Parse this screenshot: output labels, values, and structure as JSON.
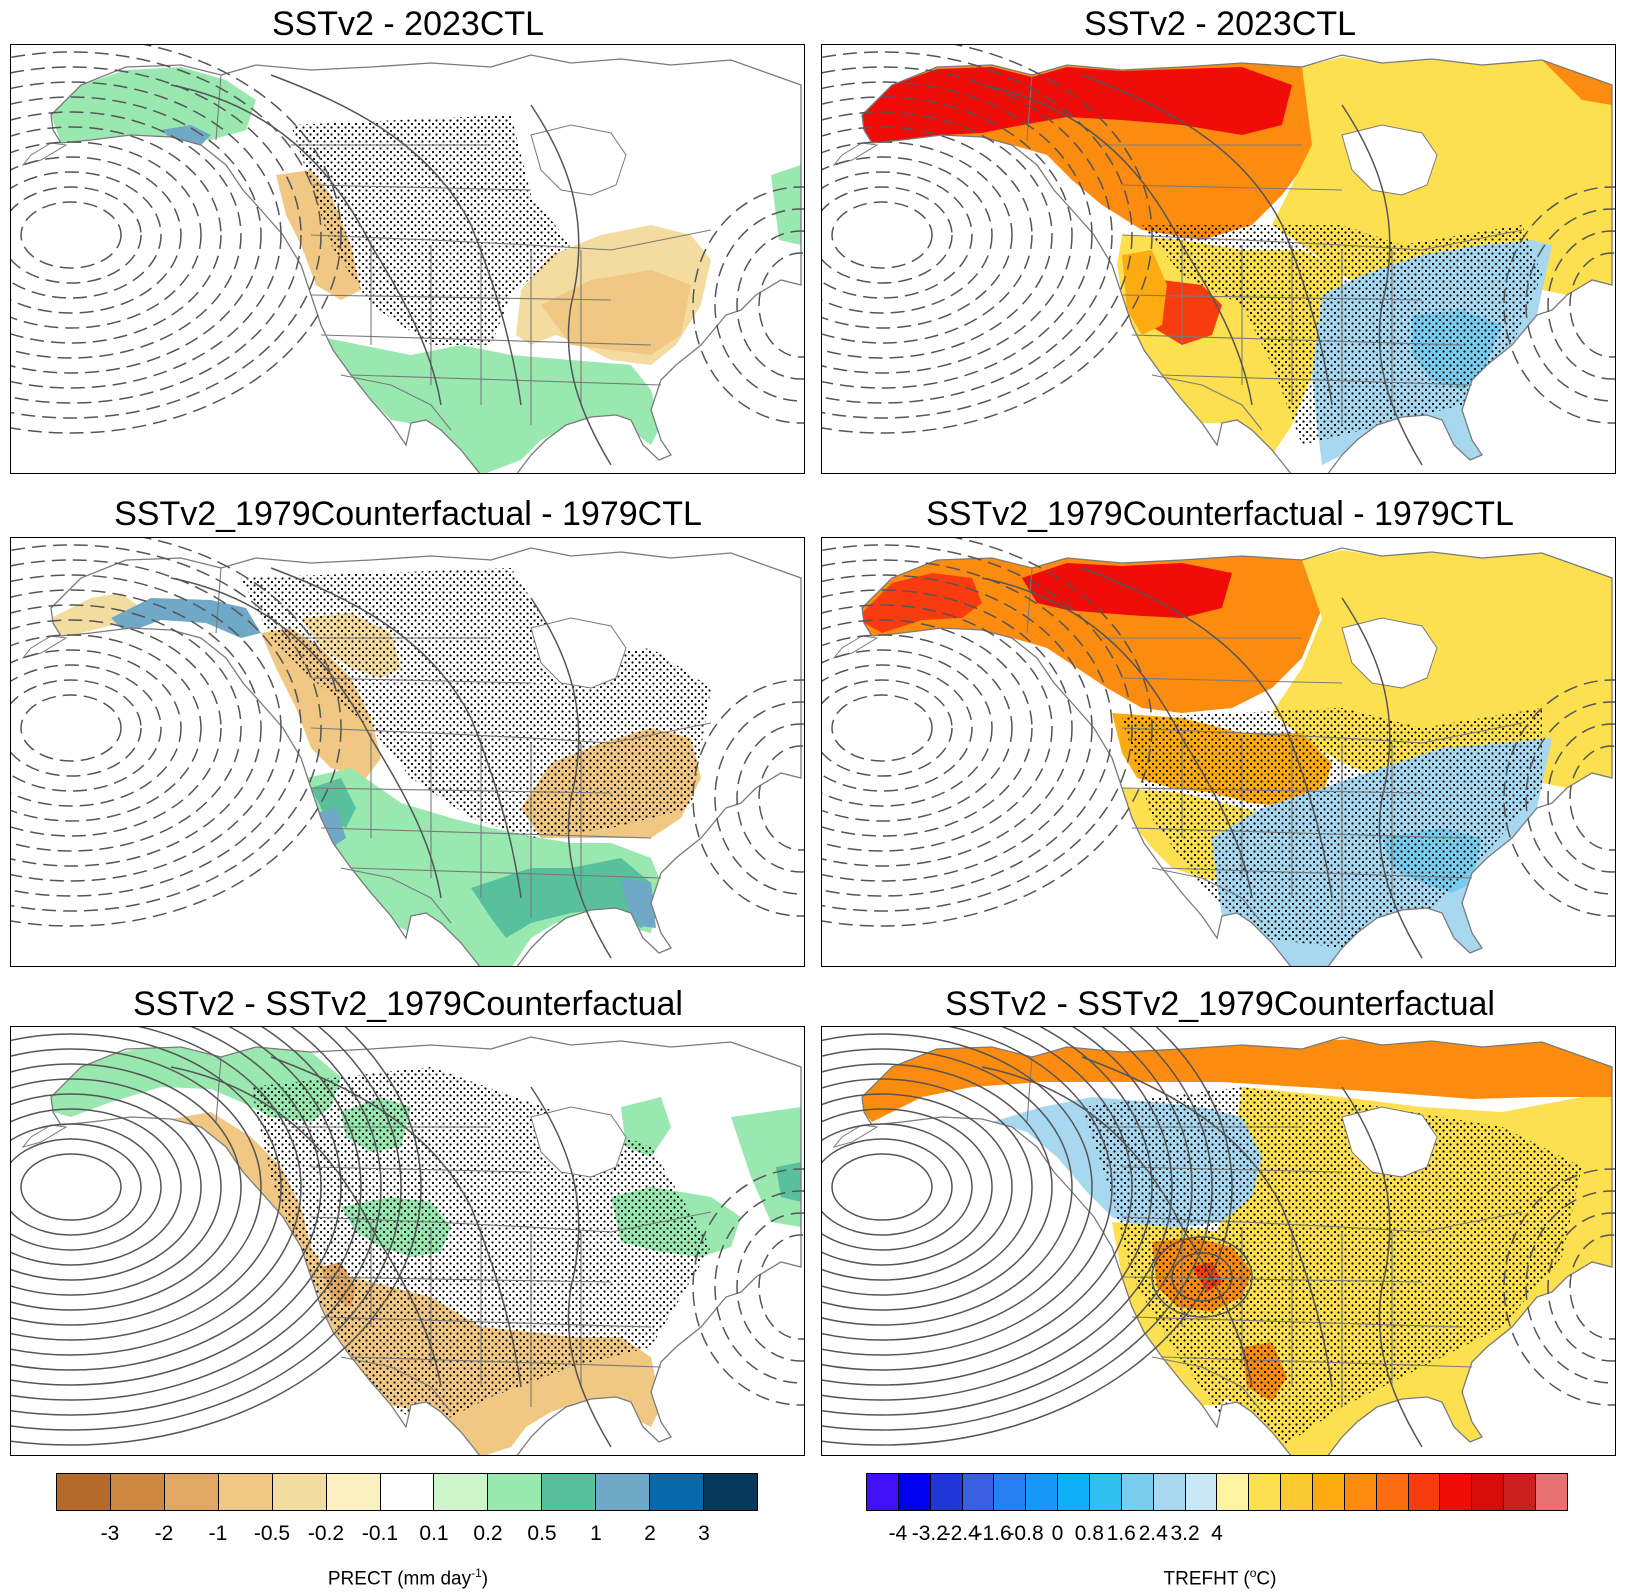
{
  "panels": [
    {
      "title": "SSTv2 - 2023CTL",
      "variable": "precip",
      "scenario": "2023"
    },
    {
      "title": "SSTv2 - 2023CTL",
      "variable": "temp",
      "scenario": "2023"
    },
    {
      "title": "SSTv2_1979Counterfactual - 1979CTL",
      "variable": "precip",
      "scenario": "1979"
    },
    {
      "title": "SSTv2_1979Counterfactual - 1979CTL",
      "variable": "temp",
      "scenario": "1979"
    },
    {
      "title": "SSTv2 - SSTv2_1979Counterfactual",
      "variable": "precip",
      "scenario": "diff"
    },
    {
      "title": "SSTv2 - SSTv2_1979Counterfactual",
      "variable": "temp",
      "scenario": "diff"
    }
  ],
  "colorbars": {
    "precip": {
      "ticks": [
        "-3",
        "-2",
        "-1",
        "-0.5",
        "-0.2",
        "-0.1",
        "0.1",
        "0.2",
        "0.5",
        "1",
        "2",
        "3"
      ],
      "colors": [
        "#b5692a",
        "#cc8840",
        "#e0a862",
        "#f0c884",
        "#f4dca0",
        "#fbf0c0",
        "#ffffff",
        "#cef5cc",
        "#98e8b0",
        "#58c09c",
        "#70a8c8",
        "#0868a8",
        "#06385c"
      ],
      "label_main": "PRECT (mm day",
      "label_sup": "-1",
      "label_end": ")"
    },
    "temp": {
      "ticks": [
        "-4",
        "-3.2",
        "-2.4",
        "-1.6",
        "-0.8",
        "0",
        "0.8",
        "1.6",
        "2.4",
        "3.2",
        "4"
      ],
      "colors": [
        "#4010f8",
        "#0000f0",
        "#2038d8",
        "#3860e0",
        "#2880f0",
        "#1898f8",
        "#10b0f8",
        "#30c0f0",
        "#78ccee",
        "#a8d8f0",
        "#c8e8f6",
        "#fcf4a0",
        "#fce050",
        "#fcc830",
        "#fcac10",
        "#fc8c10",
        "#fc6c10",
        "#f83c10",
        "#f00c08",
        "#d80c08",
        "#cc2020",
        "#e87070"
      ],
      "label_main": "TREFHT (",
      "label_sup": "o",
      "label_end": "C)"
    }
  },
  "palette": {
    "precip_wet": "#98e8b0",
    "precip_wet_strong": "#58c09c",
    "precip_wet_blue": "#70a8c8",
    "precip_dry_light": "#f4dca0",
    "precip_dry": "#f0c884",
    "precip_dry_strong": "#e0a862",
    "temp_red": "#f00c08",
    "temp_redorange": "#f83c10",
    "temp_orange": "#fc8c10",
    "temp_lightorange": "#fcac10",
    "temp_yellow": "#fce050",
    "temp_paleyellow": "#fcf4a0",
    "temp_lightblue": "#a8d8f0",
    "temp_blue": "#78ccee",
    "contour": "#555555",
    "border": "#7a7a7a"
  }
}
